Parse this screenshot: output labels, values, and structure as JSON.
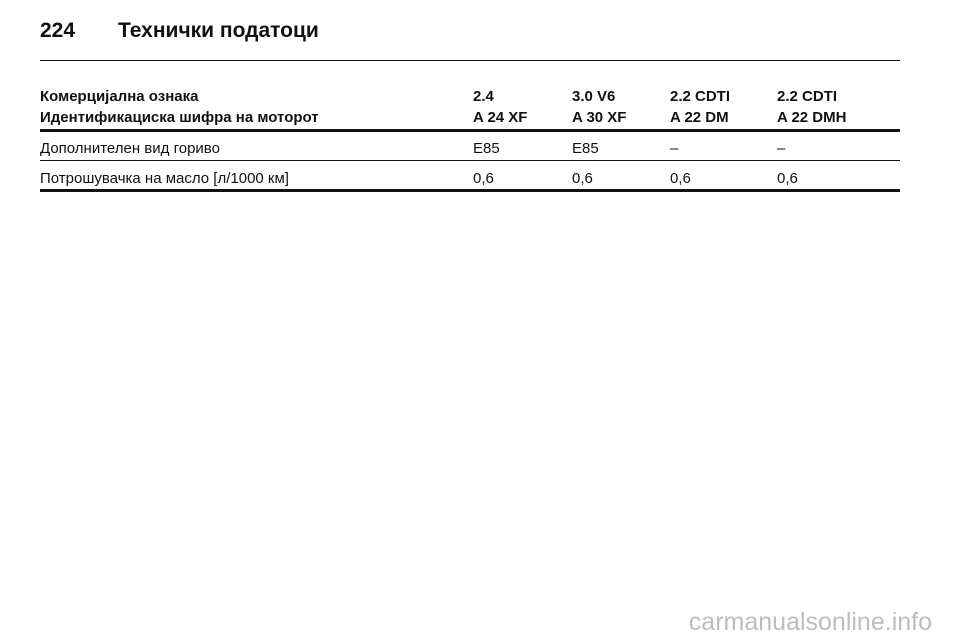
{
  "header": {
    "page_number": "224",
    "title": "Технички податоци"
  },
  "table": {
    "header_rows": [
      [
        "Комерцијална ознака",
        "2.4",
        "3.0 V6",
        "2.2 CDTI",
        "2.2 CDTI"
      ],
      [
        "Идентификациска шифра на моторот",
        "A 24 XF",
        "A 30 XF",
        "A 22 DM",
        "A 22 DMH"
      ]
    ],
    "rows": [
      [
        "Дополнителен вид гориво",
        "E85",
        "E85",
        "–",
        "–"
      ],
      [
        "Потрошувачка на масло [л/1000 км]",
        "0,6",
        "0,6",
        "0,6",
        "0,6"
      ]
    ]
  },
  "watermark": "carmanualsonline.info"
}
